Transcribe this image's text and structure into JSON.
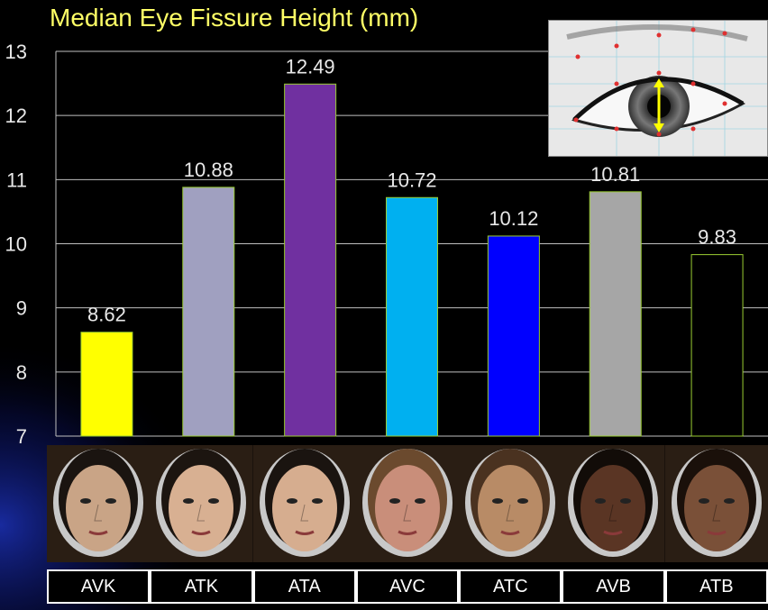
{
  "chart_data": {
    "type": "bar",
    "title": "Median Eye Fissure Height (mm)",
    "categories": [
      "AVK",
      "ATK",
      "ATA",
      "AVC",
      "ATC",
      "AVB",
      "ATB"
    ],
    "values": [
      8.62,
      10.88,
      12.49,
      10.72,
      10.12,
      10.81,
      9.83
    ],
    "data_labels": [
      "8.62",
      "10.88",
      "12.49",
      "10.72",
      "10.12",
      "10.81",
      "9.83"
    ],
    "y_ticks": [
      "7",
      "8",
      "9",
      "10",
      "11",
      "12",
      "13"
    ],
    "ylim": [
      7,
      13
    ],
    "grid": true,
    "bar_colors": [
      "#ffff00",
      "#a0a0c0",
      "#7030a0",
      "#00b0f0",
      "#0000ff",
      "#a6a6a6",
      "#000000"
    ],
    "bar_outline": "#9acd32"
  },
  "title_color": "#ffff66",
  "icons": [
    "eye-diagram-icon",
    "face-portrait-icon"
  ]
}
